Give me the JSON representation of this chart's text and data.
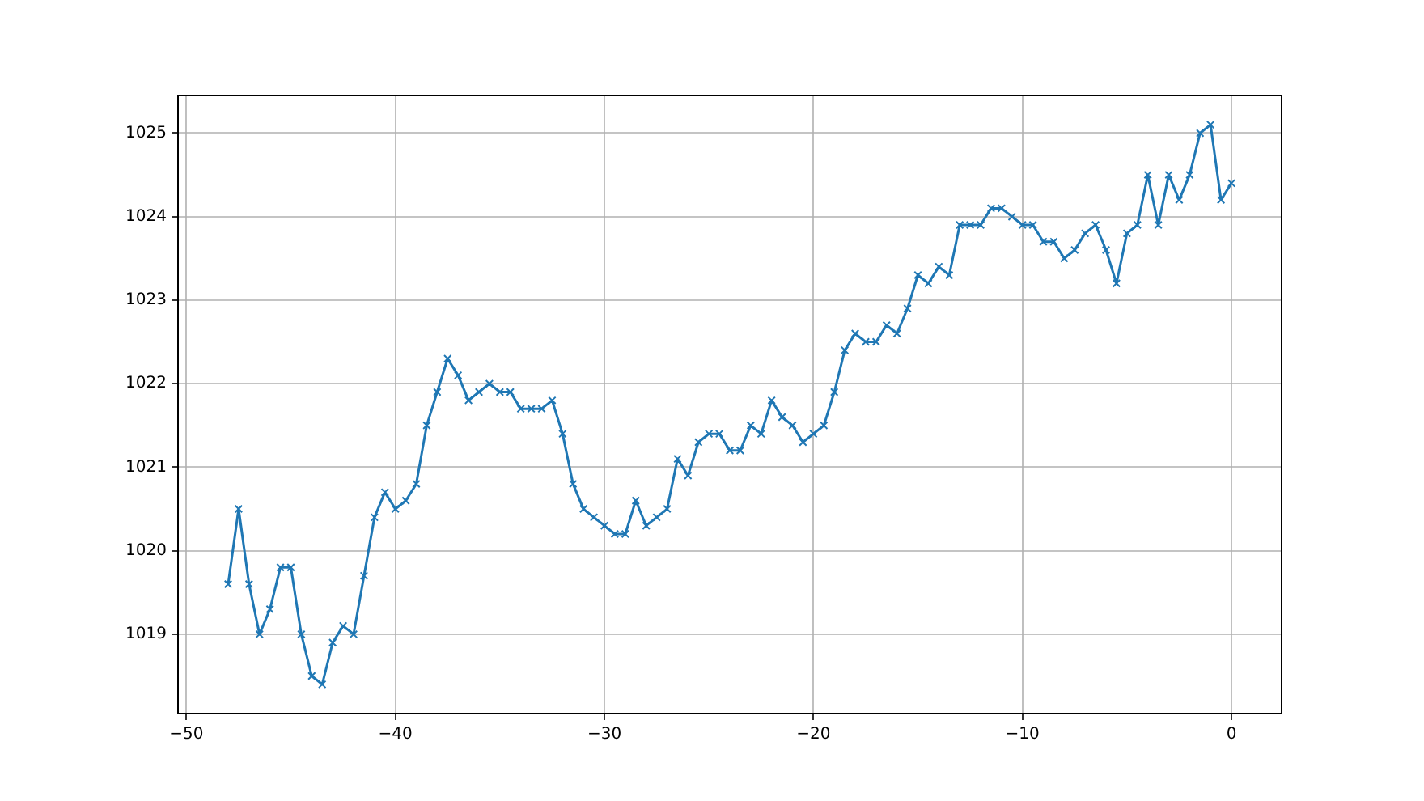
{
  "chart_data": {
    "type": "line",
    "x": [
      -48,
      -47.5,
      -47,
      -46.5,
      -46,
      -45.5,
      -45,
      -44.5,
      -44,
      -43.5,
      -43,
      -42.5,
      -42,
      -41.5,
      -41,
      -40.5,
      -40,
      -39.5,
      -39,
      -38.5,
      -38,
      -37.5,
      -37,
      -36.5,
      -36,
      -35.5,
      -35,
      -34.5,
      -34,
      -33.5,
      -33,
      -32.5,
      -32,
      -31.5,
      -31,
      -30.5,
      -30,
      -29.5,
      -29,
      -28.5,
      -28,
      -27.5,
      -27,
      -26.5,
      -26,
      -25.5,
      -25,
      -24.5,
      -24,
      -23.5,
      -23,
      -22.5,
      -22,
      -21.5,
      -21,
      -20.5,
      -20,
      -19.5,
      -19,
      -18.5,
      -18,
      -17.5,
      -17,
      -16.5,
      -16,
      -15.5,
      -15,
      -14.5,
      -14,
      -13.5,
      -13,
      -12.5,
      -12,
      -11.5,
      -11,
      -10.5,
      -10,
      -9.5,
      -9,
      -8.5,
      -8,
      -7.5,
      -7,
      -6.5,
      -6,
      -5.5,
      -5,
      -4.5,
      -4,
      -3.5,
      -3,
      -2.5,
      -2,
      -1.5,
      -1,
      -0.5,
      0
    ],
    "series": [
      {
        "color": "#1f77b4",
        "values": [
          1019.6,
          1020.5,
          1019.6,
          1019.0,
          1019.3,
          1019.8,
          1019.8,
          1019.0,
          1018.5,
          1018.4,
          1018.9,
          1019.1,
          1019.0,
          1019.7,
          1020.4,
          1020.7,
          1020.5,
          1020.6,
          1020.8,
          1021.5,
          1021.9,
          1022.3,
          1022.1,
          1021.8,
          1021.9,
          1022.0,
          1021.9,
          1021.9,
          1021.7,
          1021.7,
          1021.7,
          1021.8,
          1021.4,
          1020.8,
          1020.5,
          1020.4,
          1020.3,
          1020.2,
          1020.2,
          1020.6,
          1020.3,
          1020.4,
          1020.5,
          1021.1,
          1020.9,
          1021.3,
          1021.4,
          1021.4,
          1021.2,
          1021.2,
          1021.5,
          1021.4,
          1021.8,
          1021.6,
          1021.5,
          1021.3,
          1021.4,
          1021.5,
          1021.9,
          1022.4,
          1022.6,
          1022.5,
          1022.5,
          1022.7,
          1022.6,
          1022.9,
          1023.3,
          1023.2,
          1023.4,
          1023.3,
          1023.9,
          1023.9,
          1023.9,
          1024.1,
          1024.1,
          1024.0,
          1023.9,
          1023.9,
          1023.7,
          1023.7,
          1023.5,
          1023.6,
          1023.8,
          1023.9,
          1023.6,
          1023.2,
          1023.8,
          1023.9,
          1024.5,
          1023.9,
          1024.5,
          1024.2,
          1024.5,
          1025.0,
          1025.1,
          1024.2,
          1024.4
        ]
      }
    ],
    "xlim": [
      -50.4,
      2.4
    ],
    "ylim": [
      1018.05,
      1025.45
    ],
    "xticks": [
      -50,
      -40,
      -30,
      -20,
      -10,
      0
    ],
    "yticks": [
      1019,
      1020,
      1021,
      1022,
      1023,
      1024,
      1025
    ],
    "grid": true,
    "marker": "cross",
    "line_style": "solid"
  }
}
